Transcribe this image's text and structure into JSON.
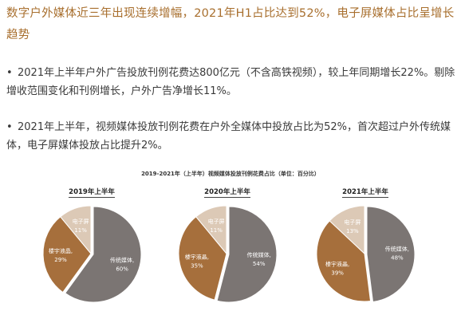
{
  "headline": "数字户外媒体近三年出现连续增幅，2021年H1占比达到52%，电子屏媒体占比呈增长趋势",
  "bullets": [
    "2021年上半年户外广告投放刊例花费达800亿元（不含高铁视频），较上年同期增长22%。剔除增收范围变化和刊例增长，户外广告净增长11%。",
    "2021年上半年，视频媒体投放刊例花费在户外全媒体中投放占比为52%，首次超过户外传统媒体，电子屏媒体投放占比提升2%。"
  ],
  "colors": {
    "headline": "#a86f2e",
    "traditional": "#7b7573",
    "building_lcd": "#a66f3c",
    "electronic_screen": "#dcc9b6"
  },
  "chart_data": {
    "type": "pie",
    "title": "2019-2021年（上半年）视频媒体投放刊例花费占比（单位：百分比）",
    "charts": [
      {
        "title": "2019年上半年",
        "slices": [
          {
            "label": "传统媒体,",
            "value": 60,
            "value_label": "60%"
          },
          {
            "label": "楼宇液晶,",
            "value": 29,
            "value_label": "29%"
          },
          {
            "label": "电子屏",
            "value": 11,
            "value_label": "11%"
          }
        ]
      },
      {
        "title": "2020年上半年",
        "slices": [
          {
            "label": "传统媒体,",
            "value": 54,
            "value_label": "54%"
          },
          {
            "label": "楼宇液晶,",
            "value": 35,
            "value_label": "35%"
          },
          {
            "label": "电子屏",
            "value": 11,
            "value_label": "11%"
          }
        ]
      },
      {
        "title": "2021年上半年",
        "slices": [
          {
            "label": "传统媒体,",
            "value": 48,
            "value_label": "48%"
          },
          {
            "label": "楼宇液晶,",
            "value": 39,
            "value_label": "39%"
          },
          {
            "label": "电子屏",
            "value": 13,
            "value_label": "13%"
          }
        ]
      }
    ]
  }
}
